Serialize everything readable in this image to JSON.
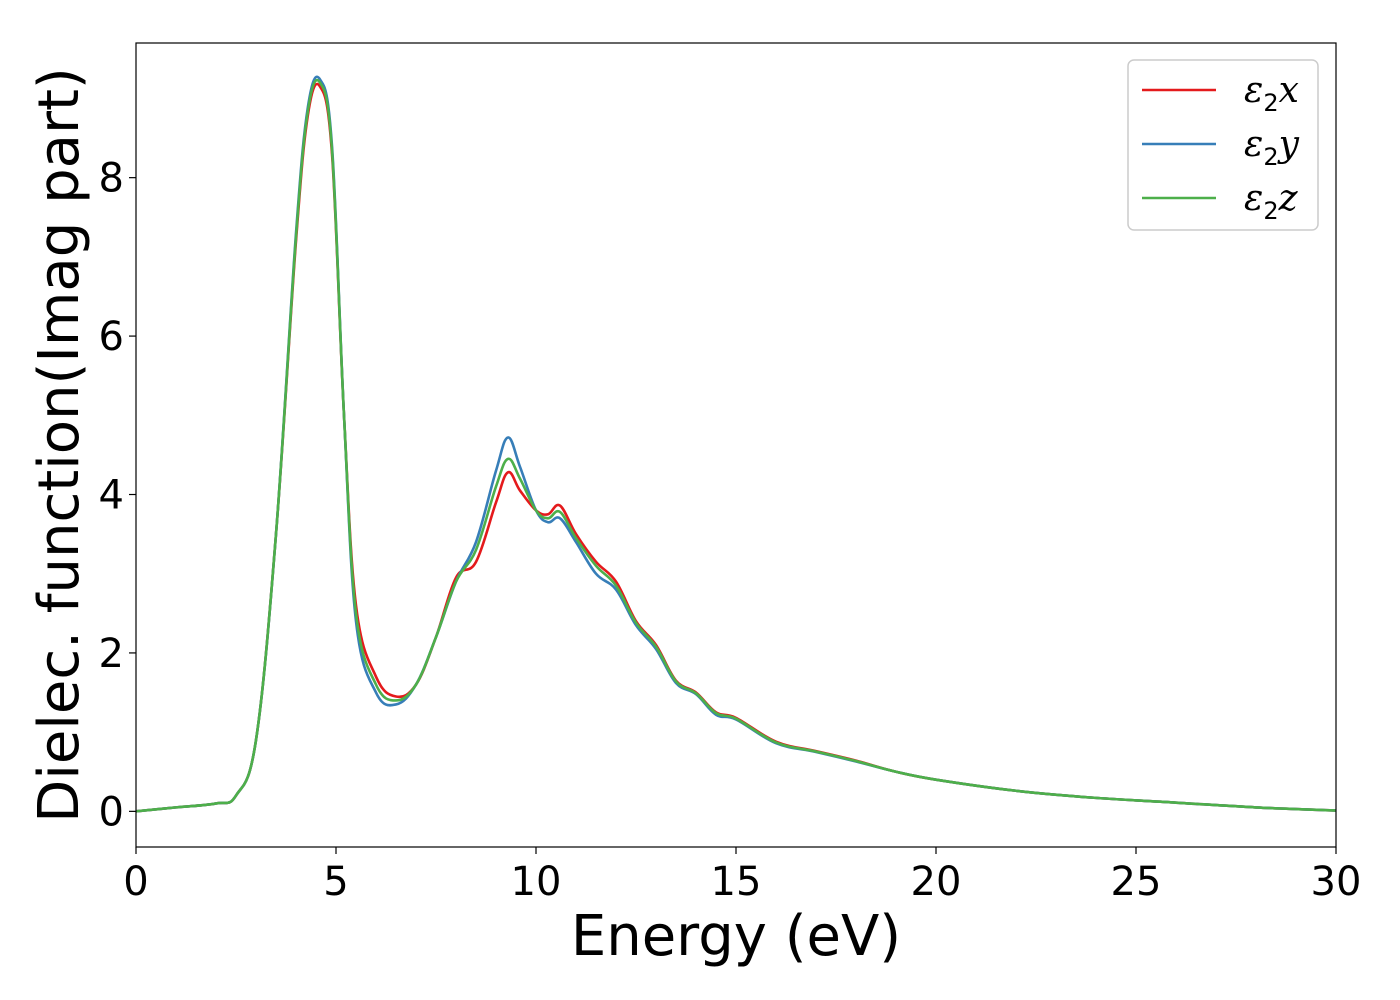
{
  "chart_data": {
    "type": "line",
    "xlabel": "Energy (eV)",
    "ylabel": "Dielec. function(Imag part)",
    "xlim": [
      0,
      30
    ],
    "ylim": [
      -0.45,
      9.7
    ],
    "xticks": [
      0,
      5,
      10,
      15,
      20,
      25,
      30
    ],
    "xtick_labels": [
      "0",
      "5",
      "10",
      "15",
      "20",
      "25",
      "30"
    ],
    "yticks": [
      0,
      2,
      4,
      6,
      8
    ],
    "ytick_labels": [
      "0",
      "2",
      "4",
      "6",
      "8"
    ],
    "grid": false,
    "legend_position": "top-right",
    "series": [
      {
        "name": "ε2x",
        "symbol": "ε",
        "subscript": "2",
        "suffix": "x",
        "color": "#e41a1c",
        "x": [
          0,
          1,
          2,
          2.5,
          3,
          3.5,
          4,
          4.3,
          4.6,
          4.9,
          5.2,
          5.5,
          6,
          6.5,
          7,
          7.5,
          8,
          8.5,
          9,
          9.3,
          9.6,
          10,
          10.3,
          10.6,
          11,
          11.5,
          12,
          12.5,
          13,
          13.5,
          14,
          14.5,
          15,
          16,
          17,
          18,
          19,
          20,
          22,
          24,
          26,
          28,
          30
        ],
        "y": [
          0.0,
          0.05,
          0.1,
          0.2,
          0.9,
          3.5,
          7.2,
          8.8,
          9.15,
          8.3,
          5.0,
          2.6,
          1.7,
          1.45,
          1.6,
          2.2,
          2.95,
          3.15,
          3.9,
          4.28,
          4.05,
          3.8,
          3.75,
          3.86,
          3.5,
          3.15,
          2.9,
          2.4,
          2.1,
          1.65,
          1.5,
          1.25,
          1.18,
          0.88,
          0.76,
          0.64,
          0.5,
          0.4,
          0.26,
          0.17,
          0.11,
          0.05,
          0.01
        ]
      },
      {
        "name": "ε2y",
        "symbol": "ε",
        "subscript": "2",
        "suffix": "y",
        "color": "#377eb8",
        "x": [
          0,
          1,
          2,
          2.5,
          3,
          3.5,
          4,
          4.3,
          4.6,
          4.9,
          5.2,
          5.5,
          6,
          6.5,
          7,
          7.5,
          8,
          8.5,
          9,
          9.3,
          9.6,
          10,
          10.3,
          10.6,
          11,
          11.5,
          12,
          12.5,
          13,
          13.5,
          14,
          14.5,
          15,
          16,
          17,
          18,
          19,
          20,
          22,
          24,
          26,
          28,
          30
        ],
        "y": [
          0.0,
          0.05,
          0.1,
          0.2,
          0.9,
          3.5,
          7.3,
          8.9,
          9.24,
          8.4,
          5.0,
          2.4,
          1.5,
          1.35,
          1.6,
          2.2,
          2.9,
          3.4,
          4.3,
          4.72,
          4.35,
          3.8,
          3.65,
          3.7,
          3.4,
          3.0,
          2.8,
          2.35,
          2.05,
          1.62,
          1.48,
          1.22,
          1.16,
          0.86,
          0.75,
          0.63,
          0.5,
          0.4,
          0.26,
          0.17,
          0.11,
          0.05,
          0.01
        ]
      },
      {
        "name": "ε2z",
        "symbol": "ε",
        "subscript": "2",
        "suffix": "z",
        "color": "#4daf4a",
        "x": [
          0,
          1,
          2,
          2.5,
          3,
          3.5,
          4,
          4.3,
          4.6,
          4.9,
          5.2,
          5.5,
          6,
          6.5,
          7,
          7.5,
          8,
          8.5,
          9,
          9.3,
          9.6,
          10,
          10.3,
          10.6,
          11,
          11.5,
          12,
          12.5,
          13,
          13.5,
          14,
          14.5,
          15,
          16,
          17,
          18,
          19,
          20,
          22,
          24,
          26,
          28,
          30
        ],
        "y": [
          0.0,
          0.05,
          0.1,
          0.2,
          0.9,
          3.5,
          7.25,
          8.85,
          9.2,
          8.35,
          5.0,
          2.5,
          1.6,
          1.4,
          1.6,
          2.2,
          2.9,
          3.3,
          4.1,
          4.45,
          4.2,
          3.8,
          3.7,
          3.78,
          3.45,
          3.1,
          2.85,
          2.38,
          2.08,
          1.64,
          1.49,
          1.24,
          1.17,
          0.87,
          0.755,
          0.635,
          0.5,
          0.4,
          0.26,
          0.17,
          0.11,
          0.05,
          0.01
        ]
      }
    ]
  }
}
